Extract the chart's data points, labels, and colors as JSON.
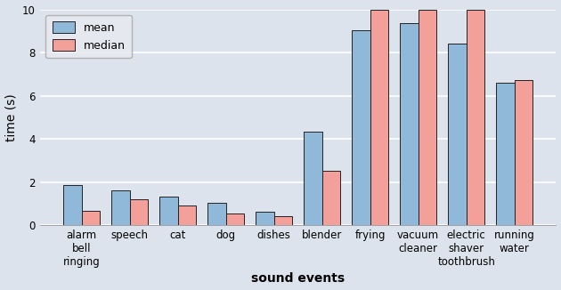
{
  "categories": [
    "alarm\nbell\nringing",
    "speech",
    "cat",
    "dog",
    "dishes",
    "blender",
    "frying",
    "vacuum\ncleaner",
    "electric\nshaver\ntoothbrush",
    "running\nwater"
  ],
  "mean": [
    1.85,
    1.62,
    1.33,
    1.03,
    0.63,
    4.35,
    9.05,
    9.35,
    8.4,
    6.6
  ],
  "median": [
    0.68,
    1.2,
    0.92,
    0.52,
    0.43,
    2.52,
    10.0,
    10.0,
    10.0,
    6.73
  ],
  "mean_color": "#90b8d8",
  "median_color": "#f4a09a",
  "background_color": "#dde3ec",
  "fig_background": "#dde3ec",
  "ylabel": "time (s)",
  "xlabel": "sound events",
  "ylim": [
    0,
    10
  ],
  "yticks": [
    0,
    2,
    4,
    6,
    8,
    10
  ],
  "bar_width": 0.38,
  "legend_labels": [
    "mean",
    "median"
  ],
  "edgecolor": "#222222"
}
